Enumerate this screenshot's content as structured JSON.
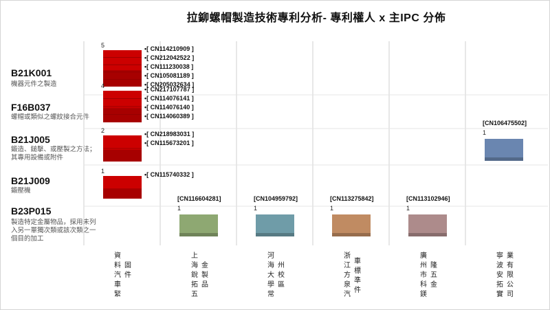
{
  "title": "拉鉚螺帽製造技術專利分析- 專利權人 x 主IPC 分佈",
  "ipc_rows": [
    {
      "code": "B21K001",
      "desc": "機器元件之製造"
    },
    {
      "code": "F16B037",
      "desc": "螺帽或類似之螺紋接合元件"
    },
    {
      "code": "B21J005",
      "desc": "鍛造、鎚擊、或壓製之方法；其專用設備或附件"
    },
    {
      "code": "B21J009",
      "desc": "鍛壓機"
    },
    {
      "code": "B23P015",
      "desc": "製造特定金屬物品，採用未列入另一單獨次類或該次類之一個目的加工"
    }
  ],
  "assignees": [
    {
      "line1": "資料汽車緊",
      "line2": "固件"
    },
    {
      "line1": "上海銳拓五",
      "line2": "金製品"
    },
    {
      "line1": "河海大學常",
      "line2": "州校區"
    },
    {
      "line1": "浙江方泉汽",
      "line2": "車標準件"
    },
    {
      "line1": "廣州市科鎂",
      "line2": "隆五金"
    },
    {
      "line1": "寧波安拓實",
      "line2": "業有限公司"
    }
  ],
  "colors": {
    "red": "#cc0000",
    "blue": "#6a86b0",
    "green": "#8ea872",
    "teal": "#6f9ca8",
    "orange": "#c08b62",
    "mauve": "#ad8b8b",
    "grid": "#cfcfcf"
  },
  "chart_data": {
    "type": "bubble-matrix",
    "title": "拉鉚螺帽製造技術專利分析- 專利權人 x 主IPC 分佈",
    "rows": [
      "B21K001",
      "F16B037",
      "B21J005",
      "B21J009",
      "B23P015"
    ],
    "columns": [
      "資料汽車緊固件",
      "上海銳拓五金製品",
      "河海大學常州校區",
      "浙江方泉汽車標準件",
      "廣州市科鎂隆五金",
      "寧波安拓實業有限公司"
    ],
    "cells": [
      {
        "row": 0,
        "col": 0,
        "count": 5,
        "color": "red",
        "patents": [
          "CN114210909",
          "CN212042522",
          "CN111230038",
          "CN105081189",
          "CN205032634"
        ]
      },
      {
        "row": 1,
        "col": 0,
        "count": 4,
        "color": "red",
        "patents": [
          "CN217107787",
          "CN114076141",
          "CN114076140",
          "CN114060389"
        ]
      },
      {
        "row": 2,
        "col": 0,
        "count": 2,
        "color": "red",
        "patents": [
          "CN218983031",
          "CN115673201"
        ]
      },
      {
        "row": 3,
        "col": 0,
        "count": 1,
        "color": "red",
        "patents": [
          "CN115740332"
        ]
      },
      {
        "row": 4,
        "col": 1,
        "count": 1,
        "color": "green",
        "patents": [
          "CN116604281"
        ]
      },
      {
        "row": 4,
        "col": 2,
        "count": 1,
        "color": "teal",
        "patents": [
          "CN104959792"
        ]
      },
      {
        "row": 4,
        "col": 3,
        "count": 1,
        "color": "orange",
        "patents": [
          "CN113275842"
        ]
      },
      {
        "row": 4,
        "col": 4,
        "count": 1,
        "color": "mauve",
        "patents": [
          "CN113102946"
        ]
      },
      {
        "row": 2,
        "col": 5,
        "count": 1,
        "color": "blue",
        "patents": [
          "CN106475502"
        ]
      }
    ]
  }
}
